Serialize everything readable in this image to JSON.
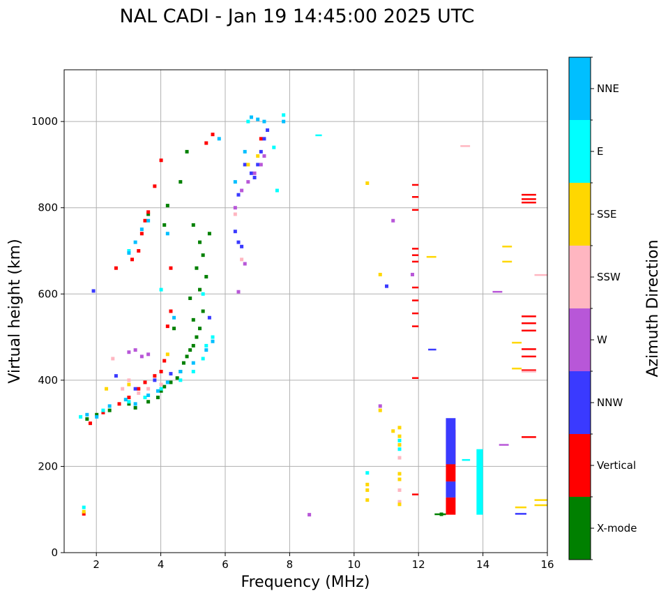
{
  "chart_data": {
    "type": "scatter",
    "title": "NAL CADI - Jan 19 14:45:00 2025 UTC",
    "xlabel": "Frequency (MHz)",
    "ylabel": "Virtual height (km)",
    "xlim": [
      1,
      16
    ],
    "ylim": [
      0,
      1120
    ],
    "xticks": [
      2,
      4,
      6,
      8,
      10,
      12,
      14,
      16
    ],
    "yticks": [
      0,
      200,
      400,
      600,
      800,
      1000
    ],
    "grid": true,
    "colorbar": {
      "label": "Azimuth Direction",
      "categories": [
        {
          "name": "X-mode",
          "color": "#008000"
        },
        {
          "name": "Vertical",
          "color": "#ff0000"
        },
        {
          "name": "NNW",
          "color": "#3a3aff"
        },
        {
          "name": "W",
          "color": "#b857d8"
        },
        {
          "name": "SSW",
          "color": "#ffb6c1"
        },
        {
          "name": "SSE",
          "color": "#ffd700"
        },
        {
          "name": "E",
          "color": "#00ffff"
        },
        {
          "name": "NNE",
          "color": "#00bfff"
        }
      ]
    },
    "series": [
      {
        "name": "X-mode",
        "points": [
          [
            1.7,
            310
          ],
          [
            2.0,
            320
          ],
          [
            2.4,
            330
          ],
          [
            3.0,
            345
          ],
          [
            3.2,
            336
          ],
          [
            3.6,
            350
          ],
          [
            3.9,
            360
          ],
          [
            4.0,
            375
          ],
          [
            4.1,
            385
          ],
          [
            4.3,
            395
          ],
          [
            4.5,
            405
          ],
          [
            4.6,
            420
          ],
          [
            4.7,
            440
          ],
          [
            4.8,
            455
          ],
          [
            4.9,
            470
          ],
          [
            5.0,
            480
          ],
          [
            5.1,
            500
          ],
          [
            5.2,
            520
          ],
          [
            5.0,
            540
          ],
          [
            5.3,
            560
          ],
          [
            4.9,
            590
          ],
          [
            5.2,
            610
          ],
          [
            5.4,
            640
          ],
          [
            5.1,
            660
          ],
          [
            5.3,
            690
          ],
          [
            5.2,
            720
          ],
          [
            5.0,
            760
          ],
          [
            4.2,
            805
          ],
          [
            4.1,
            760
          ],
          [
            3.6,
            785
          ],
          [
            4.8,
            930
          ],
          [
            4.6,
            860
          ],
          [
            5.5,
            740
          ],
          [
            4.4,
            520
          ],
          [
            12.7,
            89
          ]
        ],
        "segments": [
          [
            12.5,
            89,
            12.85,
            89
          ]
        ]
      },
      {
        "name": "Vertical",
        "points": [
          [
            1.6,
            90
          ],
          [
            1.8,
            300
          ],
          [
            2.2,
            325
          ],
          [
            2.7,
            345
          ],
          [
            3.0,
            360
          ],
          [
            3.3,
            380
          ],
          [
            3.5,
            395
          ],
          [
            3.8,
            410
          ],
          [
            4.0,
            420
          ],
          [
            4.1,
            445
          ],
          [
            4.2,
            525
          ],
          [
            4.3,
            560
          ],
          [
            3.4,
            740
          ],
          [
            3.5,
            770
          ],
          [
            3.6,
            790
          ],
          [
            3.3,
            700
          ],
          [
            3.1,
            680
          ],
          [
            2.6,
            660
          ],
          [
            4.3,
            660
          ],
          [
            4.0,
            910
          ],
          [
            5.6,
            970
          ],
          [
            5.4,
            950
          ],
          [
            7.1,
            960
          ],
          [
            3.8,
            850
          ]
        ],
        "segments": [
          [
            11.8,
            853,
            12.0,
            853
          ],
          [
            11.8,
            825,
            12.0,
            825
          ],
          [
            11.8,
            795,
            12.0,
            795
          ],
          [
            11.8,
            705,
            12.0,
            705
          ],
          [
            11.8,
            690,
            12.0,
            690
          ],
          [
            11.8,
            675,
            12.0,
            675
          ],
          [
            11.8,
            615,
            12.0,
            615
          ],
          [
            11.8,
            585,
            12.0,
            585
          ],
          [
            11.8,
            555,
            12.0,
            555
          ],
          [
            11.8,
            525,
            12.0,
            525
          ],
          [
            11.8,
            405,
            12.0,
            405
          ],
          [
            11.8,
            135,
            12.0,
            135
          ],
          [
            15.2,
            830,
            15.65,
            830
          ],
          [
            15.2,
            820,
            15.65,
            820
          ],
          [
            15.2,
            812,
            15.65,
            812
          ],
          [
            15.2,
            548,
            15.65,
            548
          ],
          [
            15.2,
            532,
            15.65,
            532
          ],
          [
            15.2,
            515,
            15.65,
            515
          ],
          [
            15.2,
            472,
            15.65,
            472
          ],
          [
            15.2,
            455,
            15.65,
            455
          ],
          [
            15.2,
            423,
            15.65,
            423
          ],
          [
            15.2,
            268,
            15.65,
            268
          ]
        ],
        "bars": [
          [
            12.85,
            13.15,
            88,
            128
          ],
          [
            12.85,
            13.15,
            165,
            285
          ]
        ]
      },
      {
        "name": "NNW",
        "points": [
          [
            1.9,
            607
          ],
          [
            2.6,
            410
          ],
          [
            3.2,
            380
          ],
          [
            3.8,
            400
          ],
          [
            4.3,
            415
          ],
          [
            5.5,
            545
          ],
          [
            6.4,
            720
          ],
          [
            6.5,
            710
          ],
          [
            6.3,
            745
          ],
          [
            6.4,
            830
          ],
          [
            6.8,
            880
          ],
          [
            7.0,
            900
          ],
          [
            7.1,
            930
          ],
          [
            7.2,
            960
          ],
          [
            7.3,
            980
          ],
          [
            6.9,
            870
          ],
          [
            6.6,
            900
          ],
          [
            11.0,
            618
          ]
        ],
        "segments": [
          [
            12.3,
            471,
            12.55,
            471
          ],
          [
            15.0,
            90,
            15.35,
            90
          ]
        ],
        "bars": [
          [
            12.85,
            13.15,
            128,
            165
          ],
          [
            12.85,
            13.15,
            205,
            312
          ]
        ]
      },
      {
        "name": "W",
        "points": [
          [
            3.0,
            465
          ],
          [
            3.2,
            470
          ],
          [
            3.4,
            455
          ],
          [
            3.6,
            460
          ],
          [
            6.4,
            605
          ],
          [
            6.3,
            800
          ],
          [
            6.5,
            840
          ],
          [
            6.7,
            860
          ],
          [
            6.9,
            880
          ],
          [
            7.1,
            900
          ],
          [
            7.2,
            920
          ],
          [
            6.6,
            670
          ],
          [
            10.8,
            340
          ],
          [
            11.2,
            770
          ],
          [
            11.8,
            645
          ],
          [
            8.6,
            88
          ]
        ],
        "segments": [
          [
            14.3,
            605,
            14.6,
            605
          ],
          [
            14.5,
            250,
            14.8,
            250
          ]
        ]
      },
      {
        "name": "SSW",
        "points": [
          [
            2.5,
            450
          ],
          [
            2.8,
            380
          ],
          [
            3.0,
            400
          ],
          [
            3.3,
            370
          ],
          [
            3.6,
            380
          ],
          [
            4.0,
            390
          ],
          [
            6.5,
            680
          ],
          [
            11.4,
            220
          ],
          [
            11.4,
            145
          ],
          [
            11.4,
            118
          ],
          [
            6.3,
            785
          ]
        ],
        "segments": [
          [
            13.3,
            943,
            13.6,
            943
          ],
          [
            15.6,
            644,
            16.0,
            644
          ],
          [
            15.2,
            420,
            15.65,
            420
          ]
        ]
      },
      {
        "name": "SSE",
        "points": [
          [
            1.6,
            95
          ],
          [
            2.3,
            380
          ],
          [
            3.0,
            390
          ],
          [
            3.5,
            360
          ],
          [
            4.2,
            460
          ],
          [
            6.7,
            900
          ],
          [
            7.0,
            920
          ],
          [
            10.4,
            857
          ],
          [
            10.4,
            158
          ],
          [
            10.4,
            145
          ],
          [
            10.4,
            122
          ],
          [
            10.8,
            645
          ],
          [
            10.8,
            330
          ],
          [
            11.2,
            282
          ],
          [
            11.4,
            290
          ],
          [
            11.4,
            270
          ],
          [
            11.4,
            250
          ],
          [
            11.4,
            183
          ],
          [
            11.4,
            170
          ],
          [
            11.4,
            112
          ]
        ],
        "segments": [
          [
            12.25,
            686,
            12.55,
            686
          ],
          [
            14.6,
            710,
            14.9,
            710
          ],
          [
            14.6,
            675,
            14.9,
            675
          ],
          [
            14.9,
            487,
            15.2,
            487
          ],
          [
            14.9,
            427,
            15.2,
            427
          ],
          [
            15.0,
            105,
            15.35,
            105
          ],
          [
            15.6,
            122,
            16.0,
            122
          ],
          [
            15.6,
            110,
            16.0,
            110
          ]
        ]
      },
      {
        "name": "E",
        "points": [
          [
            1.6,
            105
          ],
          [
            1.5,
            315
          ],
          [
            2.2,
            330
          ],
          [
            3.0,
            350
          ],
          [
            3.5,
            360
          ],
          [
            4.0,
            380
          ],
          [
            4.6,
            400
          ],
          [
            5.0,
            420
          ],
          [
            5.3,
            450
          ],
          [
            5.4,
            480
          ],
          [
            5.6,
            500
          ],
          [
            5.3,
            600
          ],
          [
            4.0,
            610
          ],
          [
            3.0,
            700
          ],
          [
            6.7,
            1000
          ],
          [
            7.5,
            940
          ],
          [
            7.6,
            840
          ],
          [
            7.8,
            1015
          ],
          [
            10.4,
            185
          ],
          [
            11.4,
            240
          ],
          [
            11.4,
            260
          ]
        ],
        "segments": [
          [
            8.8,
            968,
            9.0,
            968
          ],
          [
            13.35,
            215,
            13.6,
            215
          ]
        ],
        "bars": [
          [
            13.8,
            14.0,
            88,
            240
          ]
        ]
      },
      {
        "name": "NNE",
        "points": [
          [
            1.7,
            320
          ],
          [
            2.0,
            315
          ],
          [
            2.4,
            340
          ],
          [
            2.9,
            355
          ],
          [
            3.2,
            345
          ],
          [
            3.6,
            365
          ],
          [
            3.9,
            375
          ],
          [
            4.2,
            395
          ],
          [
            4.6,
            420
          ],
          [
            5.0,
            440
          ],
          [
            5.4,
            470
          ],
          [
            5.6,
            490
          ],
          [
            3.4,
            750
          ],
          [
            3.2,
            720
          ],
          [
            3.0,
            695
          ],
          [
            3.6,
            770
          ],
          [
            4.2,
            740
          ],
          [
            4.4,
            545
          ],
          [
            6.8,
            1010
          ],
          [
            7.0,
            1005
          ],
          [
            7.2,
            1000
          ],
          [
            7.8,
            1000
          ],
          [
            6.6,
            930
          ],
          [
            6.3,
            860
          ],
          [
            5.8,
            960
          ]
        ]
      }
    ]
  }
}
